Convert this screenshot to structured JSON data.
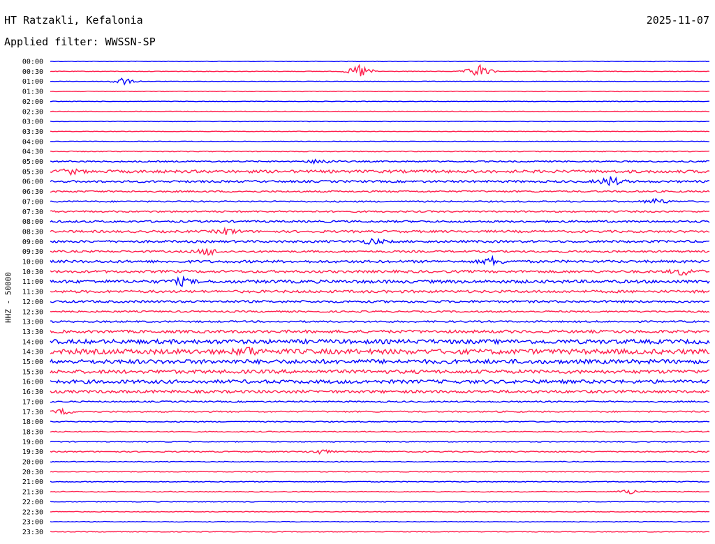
{
  "header": {
    "station": "HT Ratzakli, Kefalonia",
    "filter": "Applied filter: WWSSN-SP",
    "date": "2025-11-07",
    "channel_label": "HHZ - 50000"
  },
  "chart_data": {
    "type": "line",
    "subtype": "helicorder",
    "title": "HT Ratzakli, Kefalonia",
    "subtitle": "Applied filter: WWSSN-SP",
    "date": "2025-11-07",
    "ylabel": "HHZ - 50000",
    "xlabel": "",
    "grid": false,
    "legend": "none",
    "colors": [
      "#0000ff",
      "#ff1f4d"
    ],
    "row_labels": [
      "00:00",
      "00:30",
      "01:00",
      "01:30",
      "02:00",
      "02:30",
      "03:00",
      "03:30",
      "04:00",
      "04:30",
      "05:00",
      "05:30",
      "06:00",
      "06:30",
      "07:00",
      "07:30",
      "08:00",
      "08:30",
      "09:00",
      "09:30",
      "10:00",
      "10:30",
      "11:00",
      "11:30",
      "12:00",
      "12:30",
      "13:00",
      "13:30",
      "14:00",
      "14:30",
      "15:00",
      "15:30",
      "16:00",
      "16:30",
      "17:00",
      "17:30",
      "18:00",
      "18:30",
      "19:00",
      "19:30",
      "20:00",
      "20:30",
      "21:00",
      "21:30",
      "22:00",
      "22:30",
      "23:00",
      "23:30"
    ],
    "noise_levels": [
      0.4,
      0.4,
      0.4,
      0.4,
      0.4,
      0.4,
      0.4,
      0.4,
      0.5,
      0.6,
      1.0,
      2.0,
      1.5,
      1.2,
      1.0,
      1.2,
      1.4,
      1.6,
      1.6,
      1.4,
      1.8,
      1.8,
      2.2,
      1.8,
      1.6,
      1.2,
      1.2,
      2.0,
      3.0,
      3.5,
      3.0,
      2.5,
      2.5,
      2.0,
      1.0,
      1.0,
      0.7,
      0.7,
      0.7,
      0.8,
      0.6,
      0.6,
      0.6,
      0.6,
      0.5,
      0.5,
      0.5,
      0.5
    ],
    "events": [
      {
        "time": "00:30",
        "position": 0.47,
        "amplitude": 12
      },
      {
        "time": "00:30",
        "position": 0.65,
        "amplitude": 12
      },
      {
        "time": "01:00",
        "position": 0.11,
        "amplitude": 6
      },
      {
        "time": "05:00",
        "position": 0.41,
        "amplitude": 5
      },
      {
        "time": "05:30",
        "position": 0.03,
        "amplitude": 4
      },
      {
        "time": "06:00",
        "position": 0.85,
        "amplitude": 8
      },
      {
        "time": "07:00",
        "position": 0.92,
        "amplitude": 5
      },
      {
        "time": "08:30",
        "position": 0.27,
        "amplitude": 5
      },
      {
        "time": "09:00",
        "position": 0.49,
        "amplitude": 5
      },
      {
        "time": "09:30",
        "position": 0.24,
        "amplitude": 6
      },
      {
        "time": "10:00",
        "position": 0.67,
        "amplitude": 6
      },
      {
        "time": "10:30",
        "position": 0.96,
        "amplitude": 6
      },
      {
        "time": "11:00",
        "position": 0.2,
        "amplitude": 5
      },
      {
        "time": "14:30",
        "position": 0.3,
        "amplitude": 6
      },
      {
        "time": "17:30",
        "position": 0.02,
        "amplitude": 4
      },
      {
        "time": "19:30",
        "position": 0.41,
        "amplitude": 4
      },
      {
        "time": "21:30",
        "position": 0.88,
        "amplitude": 4
      }
    ]
  }
}
